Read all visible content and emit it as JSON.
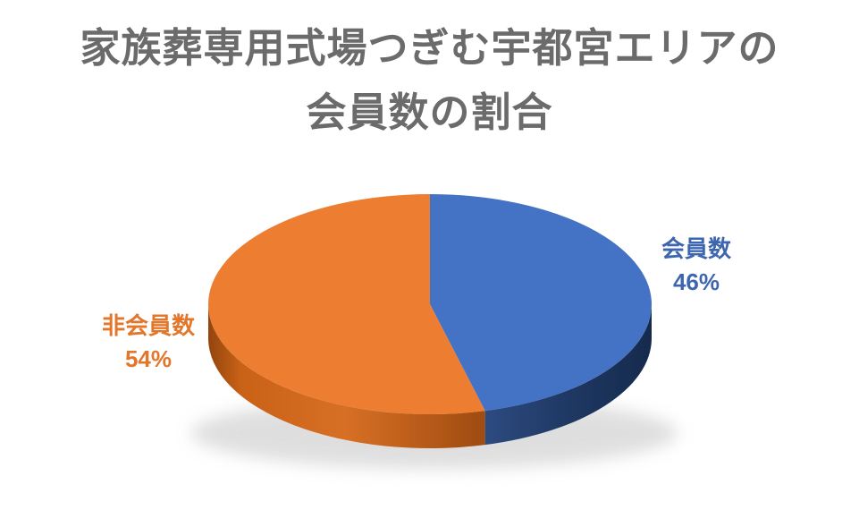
{
  "page": {
    "background": "#FFFFFF"
  },
  "title": {
    "line1": "家族葬専用式場つぎむ宇都宮エリアの",
    "line2": "会員数の割合",
    "color": "#6B6B6B"
  },
  "chart_data": {
    "type": "pie",
    "style": "3d",
    "title": "家族葬専用式場つぎむ宇都宮エリアの会員数の割合",
    "categories": [
      "会員数",
      "非会員数"
    ],
    "values": [
      46,
      54
    ],
    "unit": "%",
    "start_angle_deg": 0,
    "direction": "clockwise",
    "legend": "none",
    "data_labels": "category name and percentage, outside slices",
    "shadow_color": "#BFBFBF",
    "slices": [
      {
        "name_en": "members",
        "label": "会員数",
        "value": 46,
        "pct_text": "46%",
        "top_color": "#4472C4",
        "label_color": "#3E66B0",
        "side_gradient": [
          {
            "o": 0,
            "c": "#2D4B80"
          },
          {
            "o": 0.45,
            "c": "#203A66"
          },
          {
            "o": 1,
            "c": "#152A4D"
          }
        ]
      },
      {
        "name_en": "non-members",
        "label": "非会員数",
        "value": 54,
        "pct_text": "54%",
        "top_color": "#ED7D31",
        "label_color": "#E2762B",
        "side_gradient": [
          {
            "o": 0,
            "c": "#93450E"
          },
          {
            "o": 0.12,
            "c": "#C96217"
          },
          {
            "o": 0.5,
            "c": "#D76F24"
          },
          {
            "o": 1,
            "c": "#9E4B11"
          }
        ]
      }
    ]
  }
}
